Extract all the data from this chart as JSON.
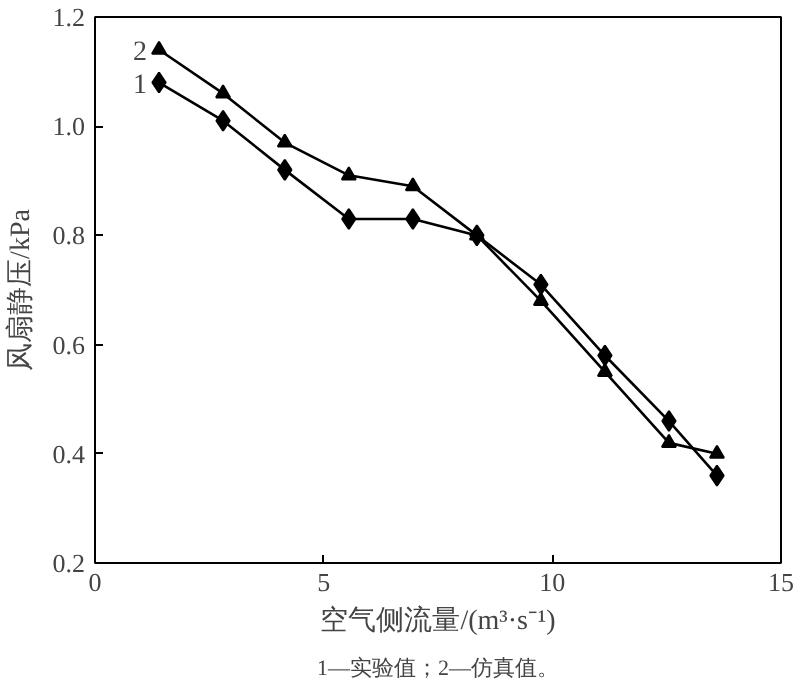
{
  "chart_data": {
    "type": "line",
    "xlabel": "空气侧流量/(m³·s⁻¹)",
    "ylabel": "风扇静压/kPa",
    "annotations": [
      "1—实验值；2—仿真值。"
    ],
    "x": [
      1.4,
      2.8,
      4.15,
      5.55,
      6.95,
      8.35,
      9.75,
      11.15,
      12.55,
      13.6
    ],
    "xlim": [
      0,
      15
    ],
    "xticks": [
      0,
      5,
      10,
      15
    ],
    "ylim": [
      0.2,
      1.2
    ],
    "yticks": [
      {
        "value": 0.2,
        "label": "0.2"
      },
      {
        "value": 0.4,
        "label": "0.4"
      },
      {
        "value": 0.6,
        "label": "0.6"
      },
      {
        "value": 0.8,
        "label": "0.8"
      },
      {
        "value": 1.0,
        "label": "1.0"
      },
      {
        "value": 1.2,
        "label": "1.2"
      }
    ],
    "grid": false,
    "legend": false,
    "line_style": "solid",
    "series": [
      {
        "name": "1",
        "color": "#000000",
        "marker": "diamond",
        "values": [
          1.08,
          1.01,
          0.92,
          0.83,
          0.83,
          0.8,
          0.71,
          0.58,
          0.46,
          0.36
        ]
      },
      {
        "name": "2",
        "color": "#000000",
        "marker": "triangle",
        "values": [
          1.14,
          1.06,
          0.97,
          0.91,
          0.89,
          0.8,
          0.68,
          0.55,
          0.42,
          0.4
        ]
      }
    ]
  }
}
